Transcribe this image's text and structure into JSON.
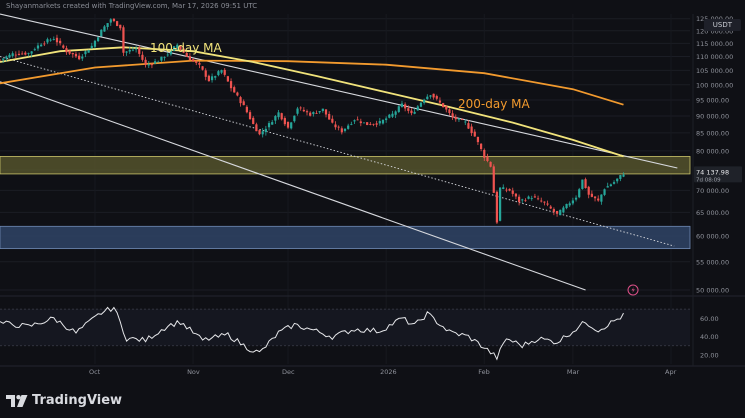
{
  "header": {
    "author_line": "Shayanmarkets created with TradingView.com, Mar 17, 2026 09:51 UTC",
    "currency": "USDT"
  },
  "brand": {
    "name": "TradingView",
    "logo_icon": "tradingview-logo-icon"
  },
  "colors": {
    "background": "#0f1015",
    "candle_up": "#26a69a",
    "candle_down": "#ef5350",
    "ma100": "#f1e37b",
    "ma200": "#f29a2e",
    "resistance_zone": "#5d5b2f",
    "support_zone": "#2f4466",
    "channel": "#d7d9de",
    "rsi_line": "#e6e7ea"
  },
  "chart_data": [
    {
      "type": "candlestick",
      "symbol_quote": "USDT",
      "y_scale": "log",
      "ylim": [
        50000,
        127000
      ],
      "y_ticks": [
        125000,
        120000,
        115000,
        110000,
        105000,
        100000,
        95000,
        90000,
        85000,
        80000,
        75000,
        70000,
        65000,
        60000,
        55000,
        50000
      ],
      "y_tick_labels": [
        "125 000.00",
        "120 000.00",
        "115 000.00",
        "110 000.00",
        "105 000.00",
        "100 000.00",
        "95 000.00",
        "90 000.00",
        "85 000.00",
        "80 000.00",
        "75 000.00",
        "70 000.00",
        "65 000.00",
        "60 000.00",
        "55 000.00",
        "50 000.00"
      ],
      "x_tick_labels": [
        "Oct",
        "Nov",
        "Dec",
        "2026",
        "Feb",
        "Mar",
        "Apr"
      ],
      "x_tick_dates": [
        "2025-10-01",
        "2025-11-01",
        "2025-12-01",
        "2026-01-01",
        "2026-02-01",
        "2026-03-01",
        "2026-04-01"
      ],
      "date_range": [
        "2025-09-01",
        "2026-04-07"
      ],
      "last_price_label": "74 137.98",
      "last_price_sub": "7d 08:09",
      "last_price": 74137.98,
      "close_path": [
        [
          "2025-09-01",
          108800
        ],
        [
          "2025-09-05",
          111000
        ],
        [
          "2025-09-10",
          111200
        ],
        [
          "2025-09-14",
          115000
        ],
        [
          "2025-09-18",
          117000
        ],
        [
          "2025-09-22",
          112000
        ],
        [
          "2025-09-26",
          109500
        ],
        [
          "2025-09-30",
          114000
        ],
        [
          "2025-10-03",
          120000
        ],
        [
          "2025-10-06",
          124800
        ],
        [
          "2025-10-09",
          121500
        ],
        [
          "2025-10-10",
          111500
        ],
        [
          "2025-10-14",
          113000
        ],
        [
          "2025-10-17",
          106800
        ],
        [
          "2025-10-21",
          108500
        ],
        [
          "2025-10-24",
          111000
        ],
        [
          "2025-10-27",
          114500
        ],
        [
          "2025-10-30",
          110000
        ],
        [
          "2025-11-03",
          106500
        ],
        [
          "2025-11-06",
          101500
        ],
        [
          "2025-11-10",
          105000
        ],
        [
          "2025-11-13",
          99000
        ],
        [
          "2025-11-17",
          93000
        ],
        [
          "2025-11-20",
          87500
        ],
        [
          "2025-11-22",
          84500
        ],
        [
          "2025-11-25",
          87500
        ],
        [
          "2025-11-28",
          91000
        ],
        [
          "2025-12-01",
          86500
        ],
        [
          "2025-12-04",
          92500
        ],
        [
          "2025-12-08",
          90500
        ],
        [
          "2025-12-12",
          92000
        ],
        [
          "2025-12-15",
          87500
        ],
        [
          "2025-12-18",
          85500
        ],
        [
          "2025-12-22",
          89000
        ],
        [
          "2025-12-26",
          87500
        ],
        [
          "2025-12-30",
          88000
        ],
        [
          "2026-01-03",
          90500
        ],
        [
          "2026-01-06",
          93500
        ],
        [
          "2026-01-09",
          90500
        ],
        [
          "2026-01-13",
          95500
        ],
        [
          "2026-01-15",
          97000
        ],
        [
          "2026-01-19",
          93000
        ],
        [
          "2026-01-22",
          89500
        ],
        [
          "2026-01-26",
          88000
        ],
        [
          "2026-01-29",
          84000
        ],
        [
          "2026-02-01",
          78500
        ],
        [
          "2026-02-03",
          76000
        ],
        [
          "2026-02-05",
          63000
        ],
        [
          "2026-02-06",
          70500
        ],
        [
          "2026-02-09",
          70000
        ],
        [
          "2026-02-12",
          67500
        ],
        [
          "2026-02-16",
          68500
        ],
        [
          "2026-02-20",
          67000
        ],
        [
          "2026-02-24",
          64500
        ],
        [
          "2026-02-27",
          66500
        ],
        [
          "2026-03-02",
          68500
        ],
        [
          "2026-03-04",
          72500
        ],
        [
          "2026-03-06",
          69000
        ],
        [
          "2026-03-09",
          67500
        ],
        [
          "2026-03-11",
          70500
        ],
        [
          "2026-03-14",
          72000
        ],
        [
          "2026-03-17",
          74137.98
        ]
      ],
      "ma100": [
        [
          "2025-09-01",
          108000
        ],
        [
          "2025-09-20",
          112000
        ],
        [
          "2025-10-10",
          113500
        ],
        [
          "2025-11-01",
          112000
        ],
        [
          "2025-11-20",
          108000
        ],
        [
          "2025-12-10",
          103000
        ],
        [
          "2026-01-01",
          97500
        ],
        [
          "2026-01-20",
          93000
        ],
        [
          "2026-02-10",
          88000
        ],
        [
          "2026-03-01",
          83000
        ],
        [
          "2026-03-17",
          78500
        ]
      ],
      "ma200": [
        [
          "2025-09-01",
          100500
        ],
        [
          "2025-10-01",
          106000
        ],
        [
          "2025-11-01",
          108500
        ],
        [
          "2025-12-01",
          108300
        ],
        [
          "2026-01-01",
          107000
        ],
        [
          "2026-02-01",
          104000
        ],
        [
          "2026-03-01",
          98500
        ],
        [
          "2026-03-17",
          93500
        ]
      ],
      "resistance_zone": [
        74000,
        78500
      ],
      "support_zone": [
        57500,
        62000
      ],
      "channel_lines": [
        {
          "name": "upper",
          "from": [
            "2025-09-01",
            127000
          ],
          "to": [
            "2026-04-03",
            75500
          ]
        },
        {
          "name": "lower",
          "from": [
            "2025-09-01",
            101000
          ],
          "to": [
            "2026-03-05",
            50000
          ]
        },
        {
          "name": "mid-dotted",
          "from": [
            "2025-09-01",
            110000
          ],
          "to": [
            "2026-04-02",
            58000
          ]
        }
      ],
      "annotations": [
        {
          "text": "100-day MA",
          "color": "#f1e37b"
        },
        {
          "text": "200-day MA",
          "color": "#f29a2e"
        }
      ],
      "event_icon": "lightning-bolt-icon"
    },
    {
      "type": "line",
      "name": "RSI",
      "ylim": [
        10,
        80
      ],
      "y_ticks": [
        60,
        40,
        20
      ],
      "y_tick_labels": [
        "60.00",
        "40.00",
        "20.00"
      ],
      "bands": [
        30,
        70
      ],
      "points": [
        [
          "2025-09-01",
          55
        ],
        [
          "2025-09-10",
          51
        ],
        [
          "2025-09-18",
          60
        ],
        [
          "2025-09-25",
          44
        ],
        [
          "2025-10-03",
          66
        ],
        [
          "2025-10-07",
          72
        ],
        [
          "2025-10-11",
          38
        ],
        [
          "2025-10-17",
          36
        ],
        [
          "2025-10-24",
          52
        ],
        [
          "2025-10-28",
          56
        ],
        [
          "2025-11-04",
          36
        ],
        [
          "2025-11-12",
          42
        ],
        [
          "2025-11-18",
          28
        ],
        [
          "2025-11-22",
          22
        ],
        [
          "2025-11-28",
          44
        ],
        [
          "2025-12-03",
          53
        ],
        [
          "2025-12-09",
          47
        ],
        [
          "2025-12-15",
          40
        ],
        [
          "2025-12-22",
          48
        ],
        [
          "2025-12-30",
          46
        ],
        [
          "2026-01-06",
          60
        ],
        [
          "2026-01-10",
          52
        ],
        [
          "2026-01-14",
          65
        ],
        [
          "2026-01-21",
          45
        ],
        [
          "2026-01-27",
          40
        ],
        [
          "2026-02-01",
          28
        ],
        [
          "2026-02-05",
          17
        ],
        [
          "2026-02-08",
          38
        ],
        [
          "2026-02-13",
          30
        ],
        [
          "2026-02-18",
          38
        ],
        [
          "2026-02-24",
          34
        ],
        [
          "2026-03-01",
          46
        ],
        [
          "2026-03-05",
          56
        ],
        [
          "2026-03-09",
          47
        ],
        [
          "2026-03-13",
          55
        ],
        [
          "2026-03-17",
          63
        ]
      ]
    }
  ]
}
